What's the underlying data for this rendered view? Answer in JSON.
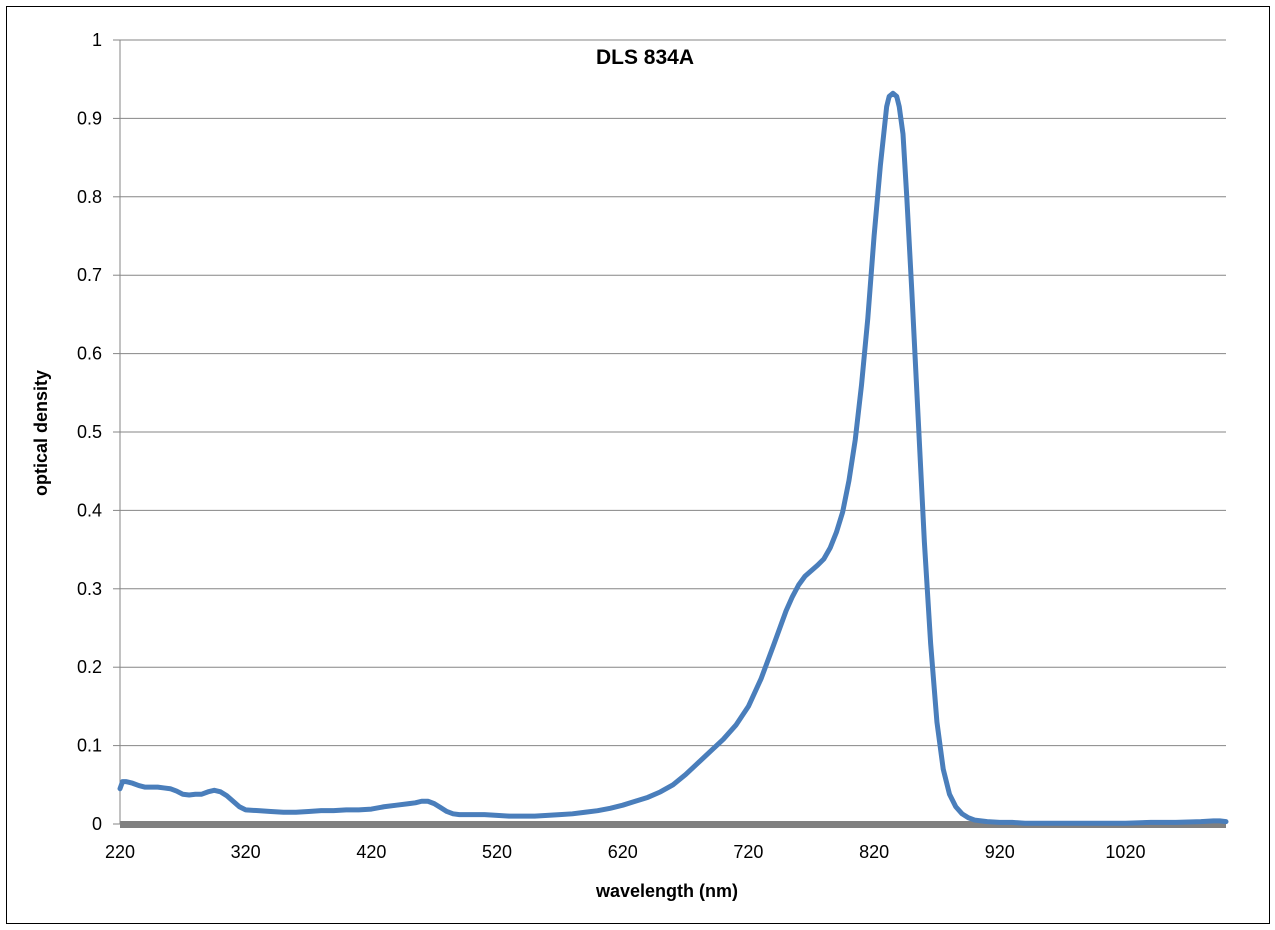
{
  "chart_data": {
    "type": "line",
    "title": "DLS 834A",
    "xlabel": "wavelength (nm)",
    "ylabel": "optical density",
    "xlim": [
      220,
      1100
    ],
    "ylim": [
      0,
      1
    ],
    "x_ticks": [
      220,
      320,
      420,
      520,
      620,
      720,
      820,
      920,
      1020
    ],
    "y_ticks": [
      0,
      0.1,
      0.2,
      0.3,
      0.4,
      0.5,
      0.6,
      0.7,
      0.8,
      0.9,
      1
    ],
    "y_tick_labels": [
      "0",
      "0.1",
      "0.2",
      "0.3",
      "0.4",
      "0.5",
      "0.6",
      "0.7",
      "0.8",
      "0.9",
      "1"
    ],
    "grid": true,
    "legend": "none",
    "colors": {
      "series": "#4a7ebb",
      "gridline": "#868686",
      "baseline": "#808080"
    },
    "series": [
      {
        "x": [
          220,
          222,
          225,
          230,
          235,
          240,
          245,
          250,
          255,
          260,
          265,
          270,
          275,
          280,
          285,
          290,
          295,
          300,
          305,
          310,
          315,
          320,
          330,
          340,
          350,
          360,
          370,
          380,
          390,
          400,
          410,
          420,
          430,
          440,
          450,
          455,
          460,
          465,
          470,
          475,
          480,
          485,
          490,
          500,
          510,
          520,
          530,
          540,
          550,
          560,
          570,
          580,
          590,
          600,
          610,
          620,
          630,
          640,
          650,
          660,
          670,
          680,
          690,
          700,
          710,
          720,
          730,
          740,
          750,
          755,
          760,
          765,
          770,
          775,
          780,
          785,
          790,
          795,
          800,
          805,
          810,
          815,
          820,
          825,
          830,
          832,
          835,
          838,
          840,
          843,
          846,
          850,
          855,
          860,
          865,
          870,
          875,
          880,
          885,
          890,
          895,
          900,
          905,
          910,
          920,
          930,
          940,
          950,
          960,
          980,
          1000,
          1020,
          1040,
          1060,
          1080,
          1090,
          1095,
          1100
        ],
        "y": [
          0.045,
          0.054,
          0.054,
          0.052,
          0.049,
          0.047,
          0.047,
          0.047,
          0.046,
          0.045,
          0.042,
          0.038,
          0.037,
          0.038,
          0.038,
          0.041,
          0.043,
          0.041,
          0.036,
          0.029,
          0.022,
          0.018,
          0.017,
          0.016,
          0.015,
          0.015,
          0.016,
          0.017,
          0.017,
          0.018,
          0.018,
          0.019,
          0.022,
          0.024,
          0.026,
          0.027,
          0.029,
          0.029,
          0.026,
          0.021,
          0.016,
          0.013,
          0.012,
          0.012,
          0.012,
          0.011,
          0.01,
          0.01,
          0.01,
          0.011,
          0.012,
          0.013,
          0.015,
          0.017,
          0.02,
          0.024,
          0.029,
          0.034,
          0.041,
          0.05,
          0.063,
          0.078,
          0.093,
          0.108,
          0.126,
          0.15,
          0.185,
          0.228,
          0.272,
          0.29,
          0.305,
          0.316,
          0.323,
          0.33,
          0.338,
          0.352,
          0.372,
          0.398,
          0.438,
          0.49,
          0.56,
          0.645,
          0.75,
          0.84,
          0.915,
          0.928,
          0.932,
          0.928,
          0.915,
          0.88,
          0.8,
          0.68,
          0.52,
          0.36,
          0.23,
          0.13,
          0.07,
          0.038,
          0.022,
          0.013,
          0.008,
          0.005,
          0.004,
          0.003,
          0.002,
          0.002,
          0.001,
          0.001,
          0.001,
          0.001,
          0.001,
          0.001,
          0.002,
          0.002,
          0.003,
          0.004,
          0.004,
          0.003
        ]
      }
    ]
  }
}
